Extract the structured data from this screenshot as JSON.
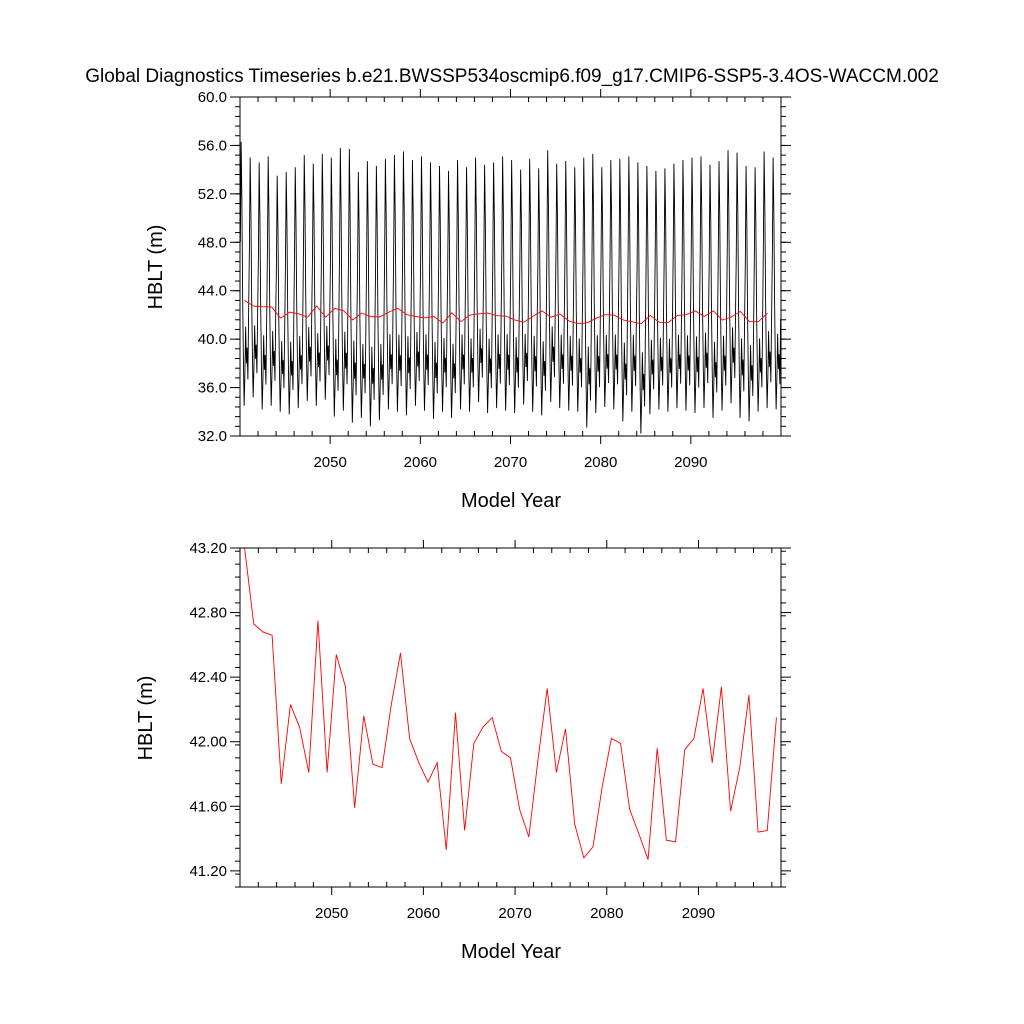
{
  "page_title": "Global Diagnostics Timeseries b.e21.BWSSP534oscmip6.f09_g17.CMIP6-SSP5-3.4OS-WACCM.002",
  "colors": {
    "monthly": "#000000",
    "annual": "#ff0000",
    "axes": "#000000",
    "background": "#ffffff"
  },
  "chart_data": [
    {
      "type": "line",
      "xlabel": "Model Year",
      "ylabel": "HBLT (m)",
      "xlim": [
        2040.0,
        2100.0
      ],
      "ylim": [
        32.0,
        60.0
      ],
      "x_ticks": [
        2050,
        2060,
        2070,
        2080,
        2090
      ],
      "x_tick_labels": [
        "2050",
        "2060",
        "2070",
        "2080",
        "2090"
      ],
      "y_ticks": [
        32.0,
        36.0,
        40.0,
        44.0,
        48.0,
        52.0,
        56.0,
        60.0
      ],
      "y_tick_labels": [
        "32.0",
        "36.0",
        "40.0",
        "44.0",
        "48.0",
        "52.0",
        "56.0",
        "60.0"
      ],
      "series": [
        {
          "color": "#000000",
          "annual_max": [
            56.3,
            55.0,
            54.6,
            55.1,
            53.5,
            53.8,
            54.2,
            55.2,
            54.5,
            55.3,
            55.0,
            55.8,
            55.7,
            53.8,
            54.7,
            54.3,
            54.9,
            55.2,
            55.5,
            54.8,
            55.1,
            54.6,
            54.3,
            53.9,
            54.8,
            54.2,
            55.0,
            54.4,
            54.6,
            55.1,
            54.8,
            54.0,
            54.9,
            54.1,
            55.6,
            54.5,
            54.7,
            54.2,
            55.0,
            55.3,
            54.2,
            54.8,
            54.9,
            55.1,
            54.6,
            54.3,
            53.9,
            54.1,
            54.5,
            54.8,
            55.0,
            55.1,
            54.4,
            54.7,
            55.6,
            55.4,
            54.3,
            54.2,
            55.5,
            55.0
          ],
          "annual_min": [
            34.5,
            35.2,
            34.2,
            34.5,
            34.0,
            33.8,
            34.3,
            34.9,
            34.5,
            35.0,
            33.6,
            34.1,
            33.1,
            33.5,
            32.8,
            33.3,
            34.2,
            34.0,
            33.7,
            34.5,
            34.1,
            33.4,
            34.0,
            33.5,
            34.2,
            34.0,
            34.8,
            33.9,
            34.3,
            34.1,
            33.9,
            34.6,
            34.0,
            33.7,
            34.8,
            34.3,
            34.1,
            34.0,
            32.7,
            33.9,
            34.4,
            34.2,
            33.2,
            34.0,
            32.2,
            33.8,
            34.2,
            34.0,
            34.3,
            34.1,
            33.9,
            34.3,
            33.5,
            34.1,
            34.7,
            33.5,
            33.2,
            34.0,
            34.3,
            34.2
          ]
        },
        {
          "color": "#ff0000",
          "values": [
            43.2,
            42.73,
            42.68,
            42.66,
            41.74,
            42.23,
            42.09,
            41.81,
            42.75,
            41.81,
            42.54,
            42.34,
            41.59,
            42.16,
            41.86,
            41.84,
            42.23,
            42.55,
            42.02,
            41.87,
            41.75,
            41.87,
            41.33,
            42.18,
            41.45,
            41.99,
            42.09,
            42.15,
            41.94,
            41.9,
            41.58,
            41.41,
            41.89,
            42.33,
            41.81,
            42.08,
            41.49,
            41.28,
            41.35,
            41.72,
            42.02,
            41.99,
            41.58,
            41.43,
            41.27,
            41.96,
            41.39,
            41.38,
            41.95,
            42.02,
            42.33,
            41.87,
            42.34,
            41.57,
            41.84,
            42.29,
            41.44,
            41.45,
            42.15
          ]
        }
      ]
    },
    {
      "type": "line",
      "xlabel": "Model Year",
      "ylabel": "HBLT (m)",
      "xlim": [
        2040.0,
        2099.0
      ],
      "ylim": [
        41.1,
        43.2
      ],
      "x_ticks": [
        2050,
        2060,
        2070,
        2080,
        2090
      ],
      "x_tick_labels": [
        "2050",
        "2060",
        "2070",
        "2080",
        "2090"
      ],
      "y_ticks": [
        41.2,
        41.6,
        42.0,
        42.4,
        42.8,
        43.2
      ],
      "y_tick_labels": [
        "41.20",
        "41.60",
        "42.00",
        "42.40",
        "42.80",
        "43.20"
      ],
      "series": [
        {
          "color": "#ff0000",
          "values": [
            43.2,
            42.73,
            42.68,
            42.66,
            41.74,
            42.23,
            42.09,
            41.81,
            42.75,
            41.81,
            42.54,
            42.34,
            41.59,
            42.16,
            41.86,
            41.84,
            42.23,
            42.55,
            42.02,
            41.87,
            41.75,
            41.87,
            41.33,
            42.18,
            41.45,
            41.99,
            42.09,
            42.15,
            41.94,
            41.9,
            41.58,
            41.41,
            41.89,
            42.33,
            41.81,
            42.08,
            41.49,
            41.28,
            41.35,
            41.72,
            42.02,
            41.99,
            41.58,
            41.43,
            41.27,
            41.96,
            41.39,
            41.38,
            41.95,
            42.02,
            42.33,
            41.87,
            42.34,
            41.57,
            41.84,
            42.29,
            41.44,
            41.45,
            42.15
          ]
        }
      ]
    }
  ]
}
